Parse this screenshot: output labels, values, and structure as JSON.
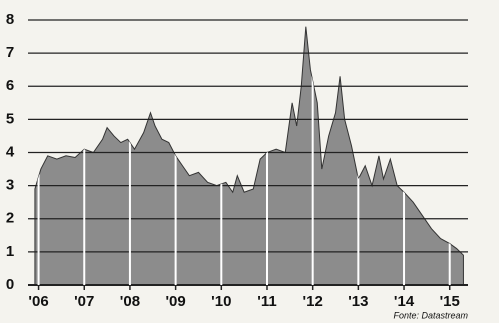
{
  "chart_data": {
    "type": "area",
    "source": "Fonte: Datastream",
    "x": [
      2005.92,
      2006.05,
      2006.2,
      2006.4,
      2006.6,
      2006.8,
      2007.0,
      2007.2,
      2007.4,
      2007.5,
      2007.65,
      2007.8,
      2007.95,
      2008.1,
      2008.3,
      2008.45,
      2008.55,
      2008.7,
      2008.85,
      2009.0,
      2009.15,
      2009.3,
      2009.5,
      2009.7,
      2009.9,
      2010.1,
      2010.25,
      2010.35,
      2010.5,
      2010.7,
      2010.85,
      2011.0,
      2011.2,
      2011.4,
      2011.55,
      2011.65,
      2011.75,
      2011.85,
      2011.95,
      2012.1,
      2012.2,
      2012.35,
      2012.5,
      2012.6,
      2012.7,
      2012.85,
      2013.0,
      2013.15,
      2013.3,
      2013.45,
      2013.55,
      2013.7,
      2013.85,
      2014.0,
      2014.2,
      2014.4,
      2014.6,
      2014.8,
      2015.0,
      2015.15,
      2015.3
    ],
    "values": [
      2.9,
      3.5,
      3.9,
      3.8,
      3.9,
      3.85,
      4.1,
      4.0,
      4.4,
      4.75,
      4.5,
      4.3,
      4.4,
      4.1,
      4.6,
      5.2,
      4.8,
      4.4,
      4.3,
      3.9,
      3.6,
      3.3,
      3.4,
      3.1,
      3.0,
      3.1,
      2.8,
      3.3,
      2.8,
      2.9,
      3.8,
      4.0,
      4.1,
      4.0,
      5.5,
      4.8,
      6.0,
      7.8,
      6.5,
      5.5,
      3.5,
      4.5,
      5.2,
      6.3,
      5.0,
      4.2,
      3.2,
      3.6,
      3.0,
      3.9,
      3.2,
      3.8,
      3.0,
      2.8,
      2.5,
      2.1,
      1.7,
      1.4,
      1.25,
      1.1,
      0.9
    ],
    "color": "#8c8c8c",
    "xlim": [
      2005.9,
      2015.4
    ],
    "ylim": [
      0,
      8
    ],
    "yticks": [
      0,
      1,
      2,
      3,
      4,
      5,
      6,
      7,
      8
    ],
    "xticks": [
      {
        "value": 2006,
        "label": "'06"
      },
      {
        "value": 2007,
        "label": "'07"
      },
      {
        "value": 2008,
        "label": "'08"
      },
      {
        "value": 2009,
        "label": "'09"
      },
      {
        "value": 2010,
        "label": "'10"
      },
      {
        "value": 2011,
        "label": "'11"
      },
      {
        "value": 2012,
        "label": "'12"
      },
      {
        "value": 2013,
        "label": "'13"
      },
      {
        "value": 2014,
        "label": "'14"
      },
      {
        "value": 2015,
        "label": "'15"
      }
    ],
    "grid": true
  }
}
